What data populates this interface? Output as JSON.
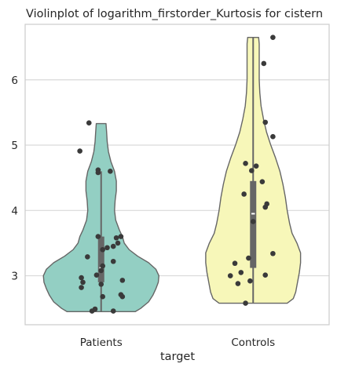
{
  "chart_data": {
    "type": "violin",
    "title": "Violinplot of logarithm_firstorder_Kurtosis for cistern",
    "xlabel": "target",
    "ylabel": "",
    "ylim": [
      2.25,
      6.85
    ],
    "yticks": [
      3,
      4,
      5,
      6
    ],
    "grid": "horizontal",
    "categories": [
      "Patients",
      "Controls"
    ],
    "colors": {
      "Patients": "#93cfc3",
      "Controls": "#f7f7b9",
      "outline": "#666666",
      "points": "#3a3a3a",
      "grid": "#d9d9d9",
      "frame": "#cccccc",
      "box": "#666666",
      "median": "#ffffff"
    },
    "series": [
      {
        "category": "Patients",
        "box": {
          "q1": 2.9,
          "median": 3.12,
          "q3": 3.6,
          "whisker_low": 2.45,
          "whisker_high": 4.6
        },
        "density": [
          [
            2.45,
            0.56
          ],
          [
            2.5,
            0.65
          ],
          [
            2.6,
            0.78
          ],
          [
            2.7,
            0.85
          ],
          [
            2.8,
            0.9
          ],
          [
            2.9,
            0.94
          ],
          [
            3.0,
            0.95
          ],
          [
            3.1,
            0.9
          ],
          [
            3.2,
            0.78
          ],
          [
            3.3,
            0.6
          ],
          [
            3.4,
            0.46
          ],
          [
            3.5,
            0.38
          ],
          [
            3.6,
            0.35
          ],
          [
            3.7,
            0.3
          ],
          [
            3.85,
            0.24
          ],
          [
            4.0,
            0.22
          ],
          [
            4.15,
            0.23
          ],
          [
            4.3,
            0.25
          ],
          [
            4.45,
            0.25
          ],
          [
            4.6,
            0.22
          ],
          [
            4.75,
            0.16
          ],
          [
            4.9,
            0.12
          ],
          [
            5.05,
            0.1
          ],
          [
            5.2,
            0.09
          ],
          [
            5.33,
            0.08
          ]
        ],
        "points": [
          [
            2.46,
            -0.06
          ],
          [
            2.49,
            -0.04
          ],
          [
            2.46,
            0.08
          ],
          [
            2.68,
            0.01
          ],
          [
            2.71,
            0.13
          ],
          [
            2.68,
            0.14
          ],
          [
            2.82,
            -0.13
          ],
          [
            2.87,
            0.0
          ],
          [
            2.9,
            -0.12
          ],
          [
            2.93,
            0.14
          ],
          [
            2.97,
            -0.13
          ],
          [
            3.01,
            -0.03
          ],
          [
            3.08,
            0.0
          ],
          [
            3.15,
            0.01
          ],
          [
            3.22,
            0.08
          ],
          [
            3.29,
            -0.09
          ],
          [
            3.4,
            0.01
          ],
          [
            3.43,
            0.04
          ],
          [
            3.45,
            0.08
          ],
          [
            3.5,
            0.11
          ],
          [
            3.58,
            0.1
          ],
          [
            3.6,
            -0.02
          ],
          [
            3.6,
            0.13
          ],
          [
            4.58,
            -0.02
          ],
          [
            4.6,
            0.06
          ],
          [
            4.62,
            -0.02
          ],
          [
            4.91,
            -0.14
          ],
          [
            5.34,
            -0.08
          ]
        ]
      },
      {
        "category": "Controls",
        "box": {
          "q1": 3.12,
          "median": 3.95,
          "q3": 4.45,
          "whisker_low": 2.58,
          "whisker_high": 6.65
        },
        "density": [
          [
            2.58,
            0.56
          ],
          [
            2.65,
            0.66
          ],
          [
            2.75,
            0.7
          ],
          [
            2.9,
            0.73
          ],
          [
            3.05,
            0.76
          ],
          [
            3.2,
            0.78
          ],
          [
            3.35,
            0.78
          ],
          [
            3.5,
            0.72
          ],
          [
            3.65,
            0.64
          ],
          [
            3.8,
            0.6
          ],
          [
            4.0,
            0.56
          ],
          [
            4.2,
            0.53
          ],
          [
            4.4,
            0.49
          ],
          [
            4.6,
            0.44
          ],
          [
            4.8,
            0.37
          ],
          [
            5.0,
            0.29
          ],
          [
            5.2,
            0.22
          ],
          [
            5.4,
            0.17
          ],
          [
            5.6,
            0.13
          ],
          [
            5.8,
            0.11
          ],
          [
            6.0,
            0.1
          ],
          [
            6.2,
            0.1
          ],
          [
            6.4,
            0.1
          ],
          [
            6.55,
            0.1
          ],
          [
            6.65,
            0.09
          ]
        ],
        "points": [
          [
            2.58,
            -0.05
          ],
          [
            2.88,
            -0.1
          ],
          [
            2.92,
            -0.02
          ],
          [
            3.0,
            -0.15
          ],
          [
            3.01,
            0.08
          ],
          [
            3.05,
            -0.08
          ],
          [
            3.19,
            -0.12
          ],
          [
            3.27,
            -0.03
          ],
          [
            3.34,
            0.13
          ],
          [
            3.83,
            0.0
          ],
          [
            4.05,
            0.08
          ],
          [
            4.1,
            0.09
          ],
          [
            4.25,
            -0.06
          ],
          [
            4.44,
            0.06
          ],
          [
            4.61,
            -0.01
          ],
          [
            4.68,
            0.02
          ],
          [
            4.72,
            -0.05
          ],
          [
            5.13,
            0.13
          ],
          [
            5.35,
            0.08
          ],
          [
            6.25,
            0.07
          ],
          [
            6.65,
            0.13
          ]
        ]
      }
    ]
  }
}
